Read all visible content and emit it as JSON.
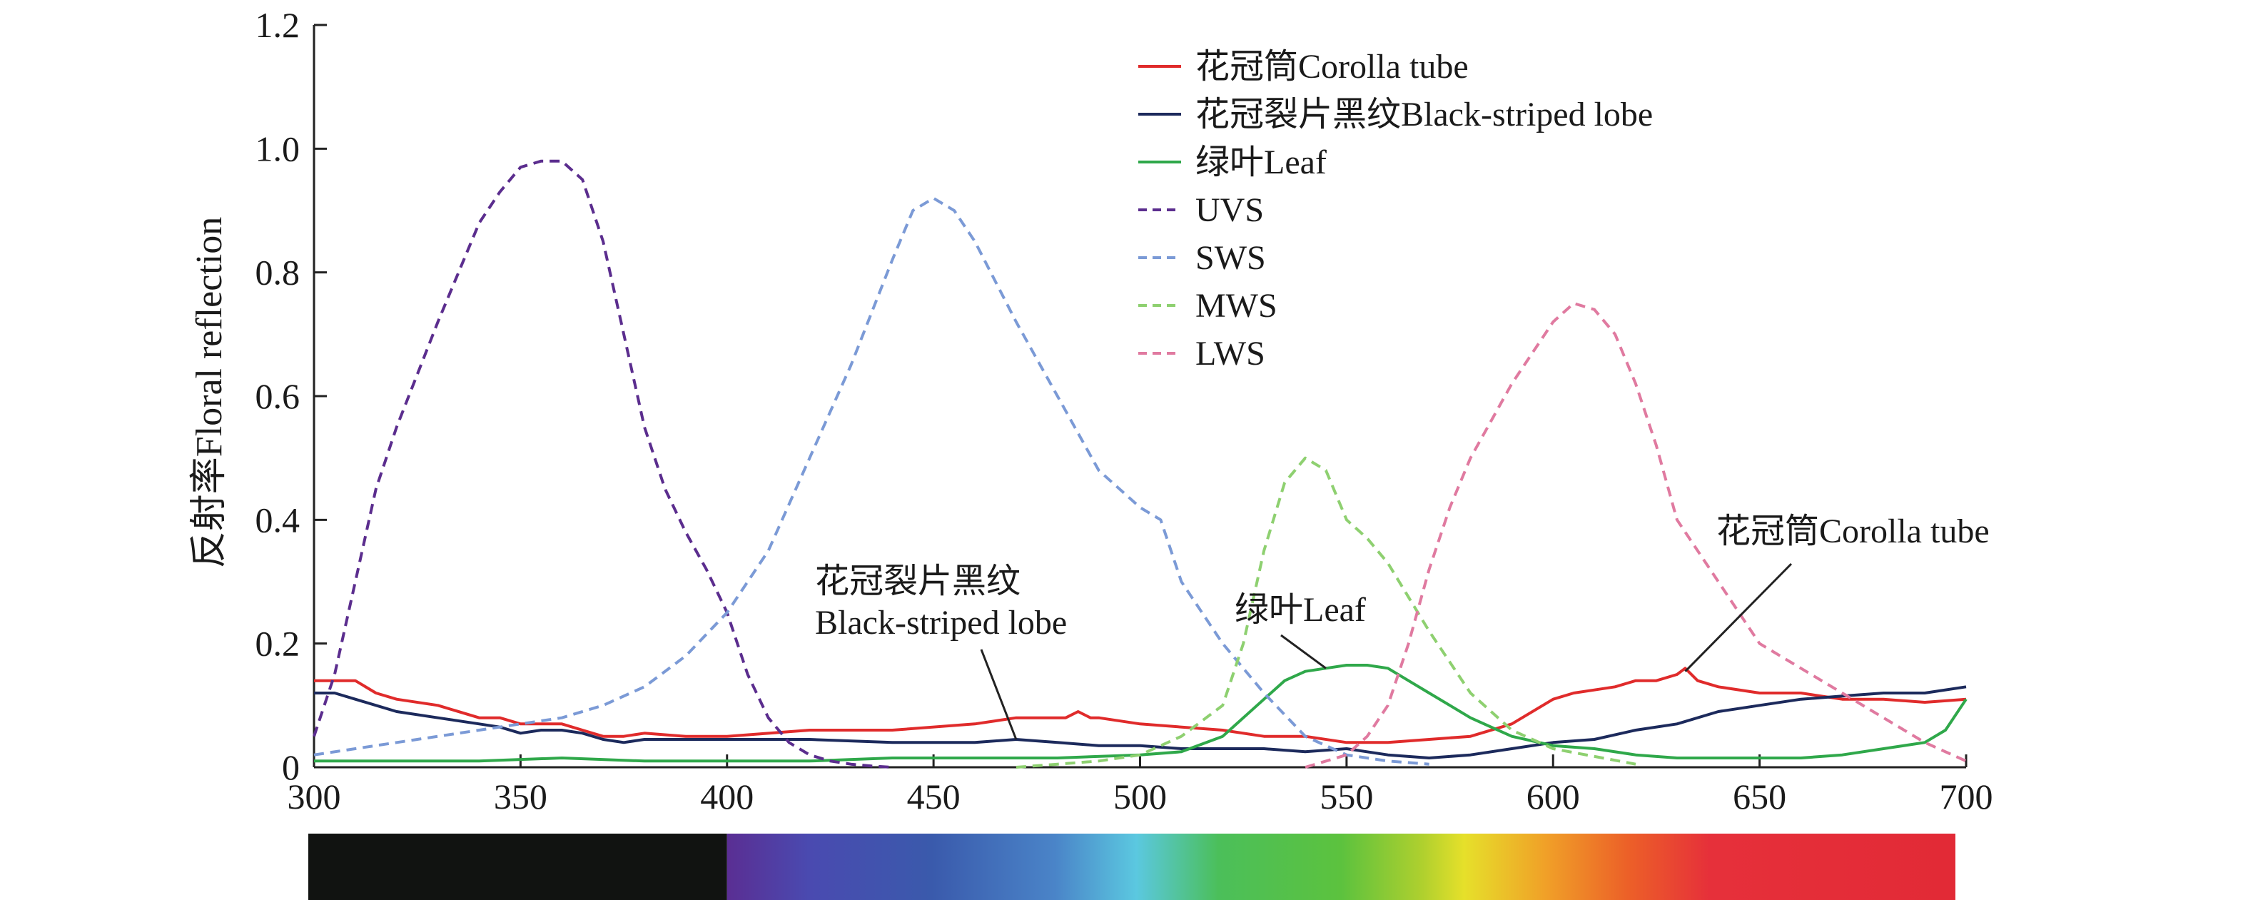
{
  "chart_data": {
    "type": "line",
    "ylabel": "反射率Floral reflection",
    "xlabel": "",
    "xlim": [
      300,
      700
    ],
    "ylim": [
      0,
      1.2
    ],
    "x_ticks": [
      300,
      350,
      400,
      450,
      500,
      550,
      600,
      650,
      700
    ],
    "y_ticks": [
      0,
      0.2,
      0.4,
      0.6,
      0.8,
      1.0,
      1.2
    ],
    "y_tick_labels": [
      "0",
      "0.2",
      "0.4",
      "0.6",
      "0.8",
      "1.0",
      "1.2"
    ],
    "legend_position": "top-right",
    "grid": false,
    "series": [
      {
        "name": "花冠筒Corolla tube",
        "color": "#e02b2b",
        "dash": "solid",
        "x": [
          300,
          305,
          310,
          315,
          320,
          330,
          340,
          345,
          350,
          355,
          360,
          365,
          370,
          375,
          380,
          390,
          400,
          420,
          440,
          460,
          470,
          480,
          482,
          485,
          488,
          490,
          500,
          520,
          530,
          540,
          550,
          560,
          570,
          580,
          590,
          600,
          605,
          610,
          615,
          620,
          625,
          630,
          632,
          635,
          640,
          650,
          660,
          670,
          680,
          690,
          700
        ],
        "y": [
          0.14,
          0.14,
          0.14,
          0.12,
          0.11,
          0.1,
          0.08,
          0.08,
          0.07,
          0.07,
          0.07,
          0.06,
          0.05,
          0.05,
          0.055,
          0.05,
          0.05,
          0.06,
          0.06,
          0.07,
          0.08,
          0.08,
          0.08,
          0.09,
          0.08,
          0.08,
          0.07,
          0.06,
          0.05,
          0.05,
          0.04,
          0.04,
          0.045,
          0.05,
          0.07,
          0.11,
          0.12,
          0.125,
          0.13,
          0.14,
          0.14,
          0.15,
          0.16,
          0.14,
          0.13,
          0.12,
          0.12,
          0.11,
          0.11,
          0.105,
          0.11
        ]
      },
      {
        "name": "花冠裂片黑纹Black-striped lobe",
        "color": "#1c2a5c",
        "dash": "solid",
        "x": [
          300,
          302,
          305,
          310,
          315,
          320,
          330,
          340,
          345,
          350,
          355,
          360,
          365,
          370,
          375,
          380,
          390,
          400,
          420,
          440,
          460,
          470,
          480,
          490,
          500,
          510,
          520,
          530,
          540,
          550,
          560,
          570,
          580,
          590,
          600,
          610,
          620,
          630,
          640,
          650,
          660,
          670,
          680,
          690,
          700
        ],
        "y": [
          0.12,
          0.12,
          0.12,
          0.11,
          0.1,
          0.09,
          0.08,
          0.07,
          0.065,
          0.055,
          0.06,
          0.06,
          0.055,
          0.045,
          0.04,
          0.045,
          0.045,
          0.045,
          0.045,
          0.04,
          0.04,
          0.045,
          0.04,
          0.035,
          0.035,
          0.03,
          0.03,
          0.03,
          0.025,
          0.03,
          0.02,
          0.015,
          0.02,
          0.03,
          0.04,
          0.045,
          0.06,
          0.07,
          0.09,
          0.1,
          0.11,
          0.115,
          0.12,
          0.12,
          0.13
        ]
      },
      {
        "name": "绿叶Leaf",
        "color": "#2fa84a",
        "dash": "solid",
        "x": [
          300,
          320,
          340,
          360,
          380,
          400,
          420,
          440,
          460,
          480,
          500,
          510,
          520,
          525,
          530,
          535,
          540,
          545,
          550,
          555,
          560,
          565,
          570,
          575,
          580,
          590,
          600,
          610,
          620,
          630,
          640,
          650,
          660,
          670,
          680,
          690,
          695,
          700
        ],
        "y": [
          0.01,
          0.01,
          0.01,
          0.015,
          0.01,
          0.01,
          0.01,
          0.015,
          0.015,
          0.015,
          0.02,
          0.025,
          0.05,
          0.08,
          0.11,
          0.14,
          0.155,
          0.16,
          0.165,
          0.165,
          0.16,
          0.14,
          0.12,
          0.1,
          0.08,
          0.05,
          0.035,
          0.03,
          0.02,
          0.015,
          0.015,
          0.015,
          0.015,
          0.02,
          0.03,
          0.04,
          0.06,
          0.11
        ]
      },
      {
        "name": "UVS",
        "color": "#5b2d8e",
        "dash": "dashed",
        "x": [
          300,
          305,
          310,
          315,
          320,
          330,
          340,
          345,
          350,
          355,
          360,
          365,
          370,
          375,
          380,
          385,
          390,
          395,
          400,
          405,
          410,
          415,
          420,
          425,
          430,
          435,
          440
        ],
        "y": [
          0.05,
          0.15,
          0.3,
          0.45,
          0.55,
          0.72,
          0.88,
          0.93,
          0.97,
          0.98,
          0.98,
          0.95,
          0.85,
          0.7,
          0.55,
          0.45,
          0.38,
          0.32,
          0.25,
          0.15,
          0.08,
          0.04,
          0.02,
          0.01,
          0.005,
          0.002,
          0.0
        ]
      },
      {
        "name": "SWS",
        "color": "#7b9ad6",
        "dash": "dashed",
        "x": [
          300,
          310,
          320,
          330,
          340,
          350,
          360,
          370,
          380,
          390,
          400,
          410,
          420,
          430,
          440,
          445,
          450,
          455,
          460,
          470,
          480,
          490,
          500,
          505,
          510,
          520,
          530,
          540,
          550,
          560,
          570
        ],
        "y": [
          0.02,
          0.03,
          0.04,
          0.05,
          0.06,
          0.07,
          0.08,
          0.1,
          0.13,
          0.18,
          0.25,
          0.35,
          0.5,
          0.65,
          0.82,
          0.9,
          0.92,
          0.9,
          0.85,
          0.72,
          0.6,
          0.48,
          0.42,
          0.4,
          0.3,
          0.2,
          0.12,
          0.05,
          0.02,
          0.01,
          0.005
        ]
      },
      {
        "name": "MWS",
        "color": "#8ed070",
        "dash": "dashed",
        "x": [
          470,
          480,
          490,
          500,
          510,
          520,
          525,
          530,
          535,
          540,
          545,
          550,
          555,
          560,
          570,
          580,
          590,
          600,
          620
        ],
        "y": [
          0.0,
          0.005,
          0.01,
          0.02,
          0.05,
          0.1,
          0.2,
          0.35,
          0.46,
          0.5,
          0.48,
          0.4,
          0.37,
          0.33,
          0.22,
          0.12,
          0.06,
          0.03,
          0.005
        ]
      },
      {
        "name": "LWS",
        "color": "#e07aa0",
        "dash": "dashed",
        "x": [
          540,
          550,
          555,
          560,
          565,
          570,
          575,
          580,
          590,
          600,
          605,
          610,
          615,
          620,
          625,
          630,
          640,
          650,
          660,
          670,
          680,
          690,
          700
        ],
        "y": [
          0.0,
          0.02,
          0.05,
          0.1,
          0.2,
          0.32,
          0.42,
          0.5,
          0.62,
          0.72,
          0.75,
          0.74,
          0.7,
          0.62,
          0.52,
          0.4,
          0.3,
          0.2,
          0.16,
          0.12,
          0.08,
          0.04,
          0.01
        ]
      }
    ],
    "annotations": [
      {
        "lines": [
          "花冠裂片黑纹",
          "Black-striped lobe"
        ],
        "points_to": {
          "x": 470,
          "y": 0.045
        }
      },
      {
        "lines": [
          "绿叶Leaf"
        ],
        "points_to": {
          "x": 545,
          "y": 0.16
        }
      },
      {
        "lines": [
          "花冠筒Corolla tube"
        ],
        "points_to": {
          "x": 632,
          "y": 0.155
        }
      }
    ],
    "color_bar": {
      "dark_range": [
        300,
        400
      ],
      "stops": [
        {
          "nm": 400,
          "color": "#5a2e93"
        },
        {
          "nm": 420,
          "color": "#4a4ab0"
        },
        {
          "nm": 450,
          "color": "#3a5aac"
        },
        {
          "nm": 480,
          "color": "#4a84c8"
        },
        {
          "nm": 500,
          "color": "#5bc8e0"
        },
        {
          "nm": 520,
          "color": "#4bbf5a"
        },
        {
          "nm": 550,
          "color": "#5cc23e"
        },
        {
          "nm": 570,
          "color": "#b0d02e"
        },
        {
          "nm": 580,
          "color": "#e6e02a"
        },
        {
          "nm": 600,
          "color": "#f0a028"
        },
        {
          "nm": 620,
          "color": "#ec6028"
        },
        {
          "nm": 640,
          "color": "#e6303a"
        },
        {
          "nm": 700,
          "color": "#e22a36"
        }
      ]
    }
  }
}
